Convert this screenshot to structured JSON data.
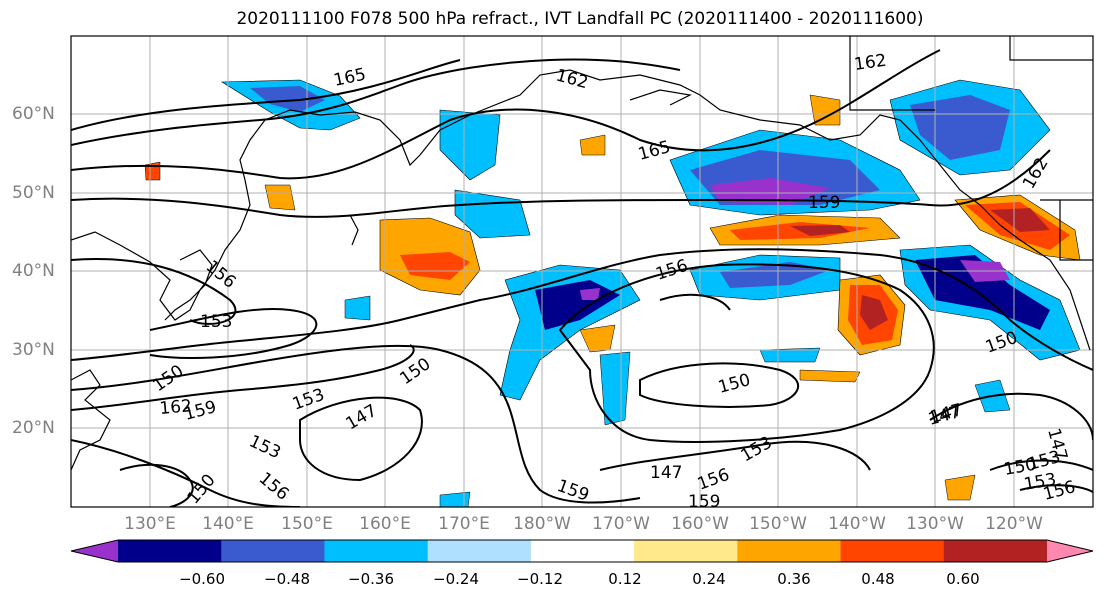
{
  "title": "2020111100 F078 500 hPa refract., IVT Landfall PC (2020111400 - 2020111600)",
  "lat_labels": [
    "60°N",
    "50°N",
    "40°N",
    "30°N",
    "20°N"
  ],
  "lon_labels": [
    "130°E",
    "140°E",
    "150°E",
    "160°E",
    "170°E",
    "180°W",
    "170°W",
    "160°W",
    "150°W",
    "140°W",
    "130°W",
    "120°W"
  ],
  "contour_labels": [
    "165",
    "162",
    "162",
    "165",
    "159",
    "156",
    "156",
    "153",
    "150",
    "150",
    "150",
    "153",
    "147",
    "153",
    "150",
    "147",
    "147",
    "159",
    "156",
    "153",
    "153",
    "159",
    "147",
    "162",
    "159",
    "156",
    "150",
    "153",
    "156",
    "147",
    "150",
    "162"
  ],
  "colorbar": {
    "ticks": [
      "−0.60",
      "−0.48",
      "−0.36",
      "−0.24",
      "−0.12",
      "0.12",
      "0.24",
      "0.36",
      "0.48",
      "0.60"
    ],
    "colors": [
      "#9932cc",
      "#00008b",
      "#3a5bd0",
      "#00bfff",
      "#b0e0ff",
      "#ffffff",
      "#ffe98a",
      "#ffa500",
      "#ff4500",
      "#b22222",
      "#ff88b0"
    ]
  }
}
